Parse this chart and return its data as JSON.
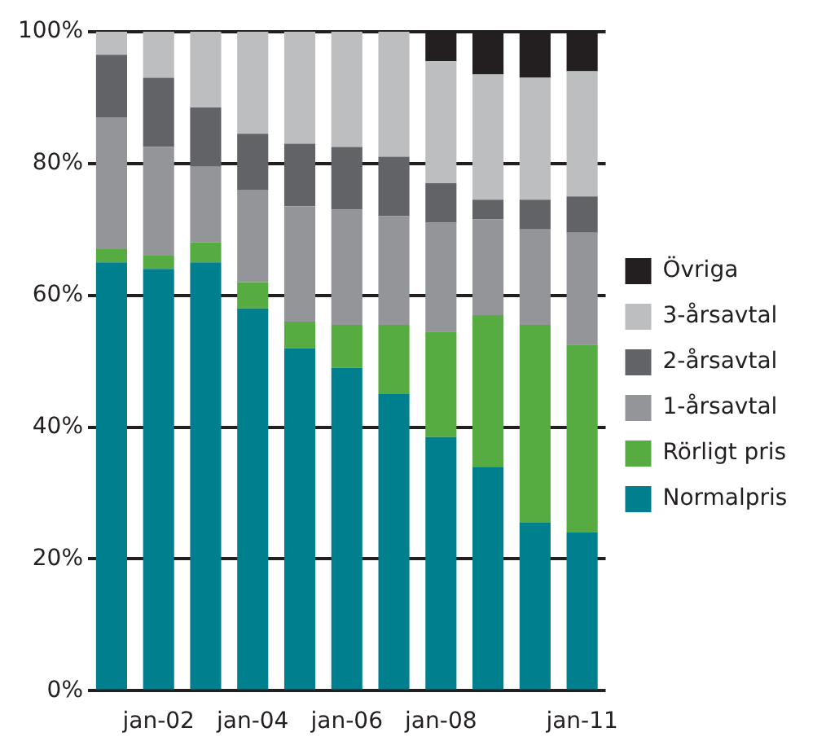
{
  "chart_data": {
    "type": "bar",
    "stacked": true,
    "categories": [
      null,
      "jan-02",
      null,
      "jan-04",
      null,
      "jan-06",
      null,
      "jan-08",
      null,
      null,
      "jan-11"
    ],
    "series": [
      {
        "name": "Normalpris",
        "color": "#00808f",
        "values": [
          65,
          64,
          65,
          58,
          52,
          49,
          45,
          38.5,
          34,
          25.5,
          24
        ]
      },
      {
        "name": "Rörligt pris",
        "color": "#56ac40",
        "values": [
          2,
          2,
          3,
          4,
          4,
          6.5,
          10.5,
          16,
          23,
          30,
          28.5
        ]
      },
      {
        "name": "1-årsavtal",
        "color": "#939598",
        "values": [
          20,
          16.5,
          11.5,
          14,
          17.5,
          17.5,
          16.5,
          16.5,
          14.5,
          14.5,
          17
        ]
      },
      {
        "name": "2-årsavtal",
        "color": "#626366",
        "values": [
          9.5,
          10.5,
          9,
          8.5,
          9.5,
          9.5,
          9,
          6,
          3,
          4.5,
          5.5
        ]
      },
      {
        "name": "3-årsavtal",
        "color": "#bcbec0",
        "values": [
          3.5,
          7,
          11.5,
          15.5,
          17,
          17.5,
          19,
          18.5,
          19,
          18.5,
          19
        ]
      },
      {
        "name": "Övriga",
        "color": "#231f20",
        "values": [
          0,
          0,
          0,
          0,
          0,
          0,
          0,
          4.5,
          6.5,
          7,
          6
        ]
      }
    ],
    "ylim": [
      0,
      100
    ],
    "yticks": [
      {
        "value": 0,
        "label": "0%"
      },
      {
        "value": 20,
        "label": "20%"
      },
      {
        "value": 40,
        "label": "40%"
      },
      {
        "value": 60,
        "label": "60%"
      },
      {
        "value": 80,
        "label": "80%"
      },
      {
        "value": 100,
        "label": "100%"
      }
    ],
    "grid": "y",
    "legend": "right"
  }
}
